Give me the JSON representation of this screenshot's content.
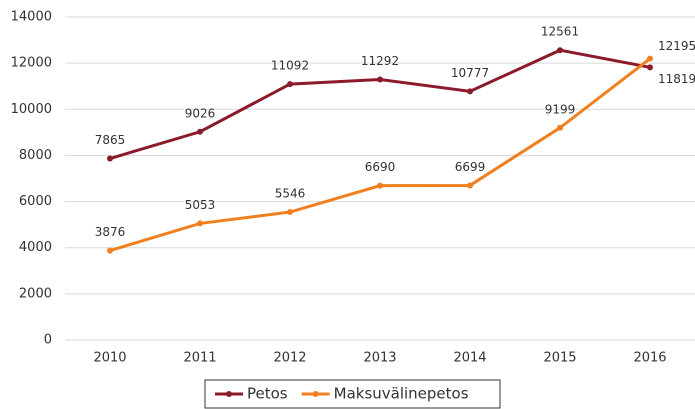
{
  "chart_data": {
    "type": "line",
    "categories": [
      2010,
      2011,
      2012,
      2013,
      2014,
      2015,
      2016
    ],
    "series": [
      {
        "name": "Petos",
        "color": "#8b1a2b",
        "values": [
          7865,
          9026,
          11092,
          11292,
          10777,
          12561,
          11819
        ]
      },
      {
        "name": "Maksuvälinepetos",
        "color": "#f07f1f",
        "values": [
          3876,
          5053,
          5546,
          6690,
          6699,
          9199,
          12195
        ]
      }
    ],
    "ylim": [
      0,
      14000
    ],
    "yticks": [
      0,
      2000,
      4000,
      6000,
      8000,
      10000,
      12000,
      14000
    ],
    "grid": true,
    "legend": "bottom"
  }
}
